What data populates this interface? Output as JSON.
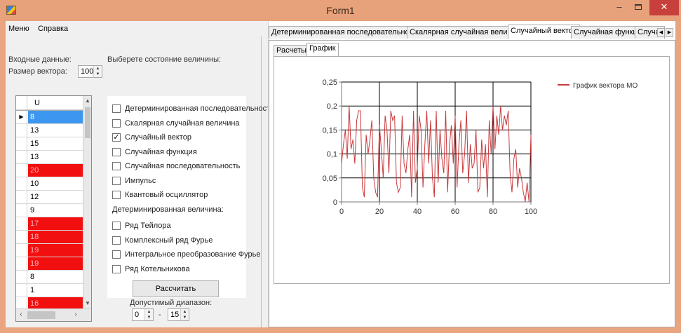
{
  "window": {
    "title": "Form1",
    "controls": {
      "minimize": "–",
      "maximize": "□",
      "close": "✕"
    }
  },
  "menu": [
    "Меню",
    "Справка"
  ],
  "left": {
    "input_label": "Входные данные:",
    "state_label": "Выберете состояние величины:",
    "vector_size_label": "Размер вектора:",
    "vector_size_value": "100",
    "grid": {
      "column": "U",
      "rows": [
        {
          "value": "8",
          "style": "sel",
          "current": true
        },
        {
          "value": "13",
          "style": ""
        },
        {
          "value": "15",
          "style": ""
        },
        {
          "value": "13",
          "style": ""
        },
        {
          "value": "20",
          "style": "red"
        },
        {
          "value": "10",
          "style": ""
        },
        {
          "value": "12",
          "style": ""
        },
        {
          "value": "9",
          "style": ""
        },
        {
          "value": "17",
          "style": "red"
        },
        {
          "value": "18",
          "style": "red"
        },
        {
          "value": "19",
          "style": "red"
        },
        {
          "value": "19",
          "style": "red"
        },
        {
          "value": "8",
          "style": ""
        },
        {
          "value": "1",
          "style": ""
        },
        {
          "value": "16",
          "style": "red"
        }
      ]
    },
    "states": [
      {
        "label": "Детерминированная последовательность",
        "checked": false
      },
      {
        "label": "Скалярная случайная величина",
        "checked": false
      },
      {
        "label": "Случайный вектор",
        "checked": true
      },
      {
        "label": "Случайная функция",
        "checked": false
      },
      {
        "label": "Случайная последовательность",
        "checked": false
      },
      {
        "label": "Импульс",
        "checked": false
      },
      {
        "label": "Квантовый осциллятор",
        "checked": false
      }
    ],
    "deterministic_label": "Детерминированная величина:",
    "deterministic": [
      {
        "label": "Ряд Тейлора",
        "checked": false
      },
      {
        "label": "Комплексный ряд Фурье",
        "checked": false
      },
      {
        "label": "Интегральное преобразование Фурье",
        "checked": false
      },
      {
        "label": "Ряд Котельникова",
        "checked": false
      }
    ],
    "calculate_button": "Рассчитать",
    "range_label": "Допустимый диапазон:",
    "range_from": "0",
    "range_dash": "-",
    "range_to": "15"
  },
  "tabs": [
    "Детерминированная последовательность",
    "Скалярная случайная величина",
    "Случайный вектор",
    "Случайная функция",
    "Случайна"
  ],
  "active_tab": 2,
  "subtabs": [
    "Расчеты",
    "График"
  ],
  "active_subtab": 1,
  "colors": {
    "series": "#c8383c",
    "grid_red": "#f20f0f",
    "grid_sel": "#3d97f0",
    "title_bar": "#e8a27b"
  },
  "chart_data": {
    "type": "line",
    "series": [
      {
        "name": "График вектора МО",
        "x": [
          0,
          1,
          2,
          3,
          4,
          5,
          6,
          7,
          8,
          9,
          10,
          11,
          12,
          13,
          14,
          15,
          16,
          17,
          18,
          19,
          20,
          21,
          22,
          23,
          24,
          25,
          26,
          27,
          28,
          29,
          30,
          31,
          32,
          33,
          34,
          35,
          36,
          37,
          38,
          39,
          40,
          41,
          42,
          43,
          44,
          45,
          46,
          47,
          48,
          49,
          50,
          51,
          52,
          53,
          54,
          55,
          56,
          57,
          58,
          59,
          60,
          61,
          62,
          63,
          64,
          65,
          66,
          67,
          68,
          69,
          70,
          71,
          72,
          73,
          74,
          75,
          76,
          77,
          78,
          79,
          80,
          81,
          82,
          83,
          84,
          85,
          86,
          87,
          88,
          89,
          90,
          91,
          92,
          93,
          94,
          95,
          96,
          97,
          98,
          99,
          100
        ],
        "values": [
          0.08,
          0.12,
          0.15,
          0.09,
          0.2,
          0.11,
          0.13,
          0.08,
          0.17,
          0.19,
          0.19,
          0.03,
          0.01,
          0.14,
          0.1,
          0.13,
          0.17,
          0.05,
          0.02,
          0.01,
          0.16,
          0.11,
          0.05,
          0.18,
          0.15,
          0.06,
          0.19,
          0.17,
          0.18,
          0.04,
          0.02,
          0.03,
          0.18,
          0.08,
          0.06,
          0.11,
          0.14,
          0.01,
          0.19,
          0.04,
          0.07,
          0.18,
          0.15,
          0.03,
          0.12,
          0.19,
          0.08,
          0.17,
          0.05,
          0.01,
          0.19,
          0.04,
          0.15,
          0.09,
          0.06,
          0.19,
          0.02,
          0.12,
          0.16,
          0.08,
          0.18,
          0.03,
          0.12,
          0.17,
          0.06,
          0.1,
          0.19,
          0.04,
          0.12,
          0.07,
          0.08,
          0.15,
          0.02,
          0.03,
          0.13,
          0.07,
          0.12,
          0.01,
          0.17,
          0.1,
          0.2,
          0.11,
          0.18,
          0.14,
          0.2,
          0.15,
          0.18,
          0.16,
          0.19,
          0.06,
          0.02,
          0.09,
          0.11,
          0.03,
          0.07,
          0.05,
          0.02,
          0.0,
          0.04,
          0.0,
          0.14
        ]
      }
    ],
    "xlim": [
      0,
      100
    ],
    "ylim": [
      0,
      0.25
    ],
    "xticks": [
      "0",
      "20",
      "40",
      "60",
      "80",
      "100"
    ],
    "yticks": [
      "0",
      "0,05",
      "0,1",
      "0,15",
      "0,2",
      "0,25"
    ],
    "grid": true,
    "legend_position": "top-right",
    "title": "",
    "xlabel": "",
    "ylabel": ""
  }
}
